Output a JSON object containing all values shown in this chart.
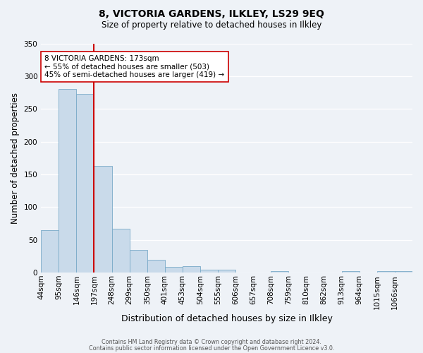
{
  "title": "8, VICTORIA GARDENS, ILKLEY, LS29 9EQ",
  "subtitle": "Size of property relative to detached houses in Ilkley",
  "xlabel": "Distribution of detached houses by size in Ilkley",
  "ylabel": "Number of detached properties",
  "bar_color": "#c9daea",
  "bar_edge_color": "#7aaac8",
  "background_color": "#eef2f7",
  "bin_labels": [
    "44sqm",
    "95sqm",
    "146sqm",
    "197sqm",
    "248sqm",
    "299sqm",
    "350sqm",
    "401sqm",
    "453sqm",
    "504sqm",
    "555sqm",
    "606sqm",
    "657sqm",
    "708sqm",
    "759sqm",
    "810sqm",
    "862sqm",
    "913sqm",
    "964sqm",
    "1015sqm",
    "1066sqm"
  ],
  "bar_heights": [
    65,
    281,
    273,
    163,
    67,
    35,
    20,
    9,
    10,
    5,
    4,
    0,
    0,
    2,
    0,
    0,
    0,
    2,
    0,
    2,
    2
  ],
  "ylim": [
    0,
    350
  ],
  "yticks": [
    0,
    50,
    100,
    150,
    200,
    250,
    300,
    350
  ],
  "property_line_bin_index": 3,
  "property_line_label": "8 VICTORIA GARDENS: 173sqm",
  "annotation_line1": "← 55% of detached houses are smaller (503)",
  "annotation_line2": "45% of semi-detached houses are larger (419) →",
  "red_line_color": "#cc0000",
  "annotation_box_facecolor": "#ffffff",
  "annotation_box_edgecolor": "#cc0000",
  "footer_line1": "Contains HM Land Registry data © Crown copyright and database right 2024.",
  "footer_line2": "Contains public sector information licensed under the Open Government Licence v3.0.",
  "grid_color": "#ffffff",
  "tick_label_fontsize": 7.5,
  "ylabel_fontsize": 8.5,
  "xlabel_fontsize": 9,
  "title_fontsize": 10,
  "subtitle_fontsize": 8.5
}
